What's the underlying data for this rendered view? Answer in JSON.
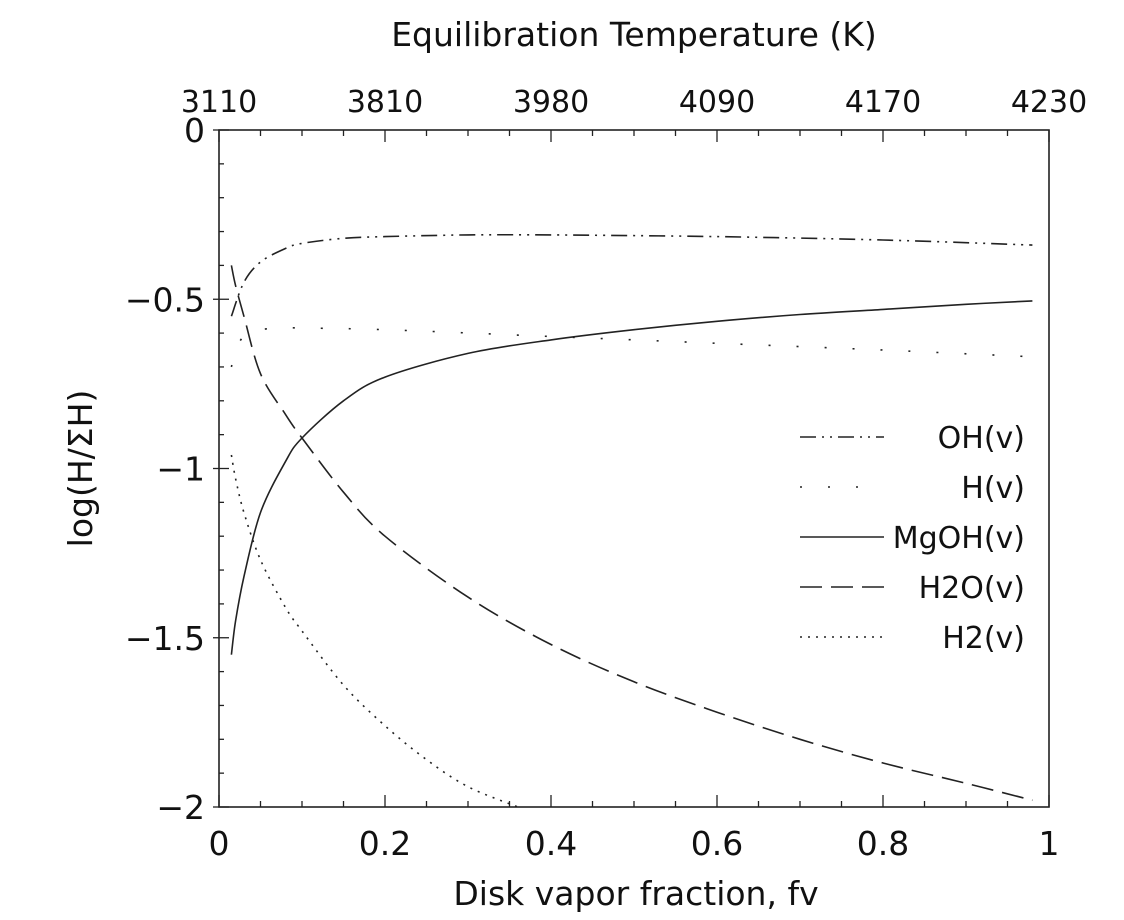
{
  "chart_data": {
    "type": "line",
    "xlabel": "Disk vapor fraction, fv",
    "ylabel": "log(H/ΣH)",
    "top_axis_label": "Equilibration Temperature (K)",
    "xlim": [
      0,
      1
    ],
    "ylim": [
      -2,
      0
    ],
    "x_ticks": [
      "0",
      "0.2",
      "0.4",
      "0.6",
      "0.8",
      "1"
    ],
    "x_tick_values": [
      0,
      0.2,
      0.4,
      0.6,
      0.8,
      1
    ],
    "y_ticks": [
      "0",
      "-0.5",
      "-1",
      "-1.5",
      "-2"
    ],
    "y_tick_values": [
      0,
      -0.5,
      -1,
      -1.5,
      -2
    ],
    "top_ticks": [
      "3110",
      "3810",
      "3980",
      "4090",
      "4170",
      "4230"
    ],
    "top_tick_positions_fv": [
      0,
      0.2,
      0.4,
      0.6,
      0.8,
      1
    ],
    "grid": false,
    "legend_position": "center-right",
    "series": [
      {
        "name": "OH(v)",
        "dash": "dashdot",
        "x": [
          0.015,
          0.03,
          0.05,
          0.08,
          0.1,
          0.15,
          0.2,
          0.3,
          0.4,
          0.6,
          0.8,
          0.98
        ],
        "y": [
          -0.55,
          -0.45,
          -0.39,
          -0.35,
          -0.335,
          -0.32,
          -0.315,
          -0.31,
          -0.31,
          -0.315,
          -0.325,
          -0.34
        ]
      },
      {
        "name": "H(v)",
        "dash": "sparse-dot",
        "x": [
          0.015,
          0.02,
          0.03,
          0.05,
          0.08,
          0.1,
          0.2,
          0.4,
          0.6,
          0.8,
          0.98
        ],
        "y": [
          -0.7,
          -0.65,
          -0.61,
          -0.59,
          -0.585,
          -0.585,
          -0.59,
          -0.61,
          -0.63,
          -0.65,
          -0.67
        ]
      },
      {
        "name": "MgOH(v)",
        "dash": "solid",
        "x": [
          0.015,
          0.02,
          0.03,
          0.05,
          0.08,
          0.1,
          0.15,
          0.2,
          0.3,
          0.4,
          0.5,
          0.6,
          0.7,
          0.8,
          0.9,
          0.98
        ],
        "y": [
          -1.55,
          -1.45,
          -1.32,
          -1.13,
          -0.98,
          -0.91,
          -0.8,
          -0.73,
          -0.66,
          -0.62,
          -0.59,
          -0.565,
          -0.545,
          -0.53,
          -0.515,
          -0.505
        ]
      },
      {
        "name": "H2O(v)",
        "dash": "longdash",
        "x": [
          0.015,
          0.02,
          0.03,
          0.05,
          0.08,
          0.1,
          0.15,
          0.2,
          0.3,
          0.4,
          0.5,
          0.6,
          0.7,
          0.8,
          0.9,
          0.98
        ],
        "y": [
          -0.4,
          -0.46,
          -0.55,
          -0.72,
          -0.84,
          -0.91,
          -1.07,
          -1.2,
          -1.38,
          -1.52,
          -1.63,
          -1.72,
          -1.8,
          -1.87,
          -1.93,
          -1.98
        ]
      },
      {
        "name": "H2(v)",
        "dash": "dotted",
        "x": [
          0.015,
          0.02,
          0.03,
          0.05,
          0.08,
          0.1,
          0.15,
          0.2,
          0.25,
          0.3,
          0.36
        ],
        "y": [
          -0.96,
          -1.03,
          -1.13,
          -1.27,
          -1.41,
          -1.48,
          -1.64,
          -1.76,
          -1.86,
          -1.94,
          -2.0
        ]
      }
    ]
  }
}
